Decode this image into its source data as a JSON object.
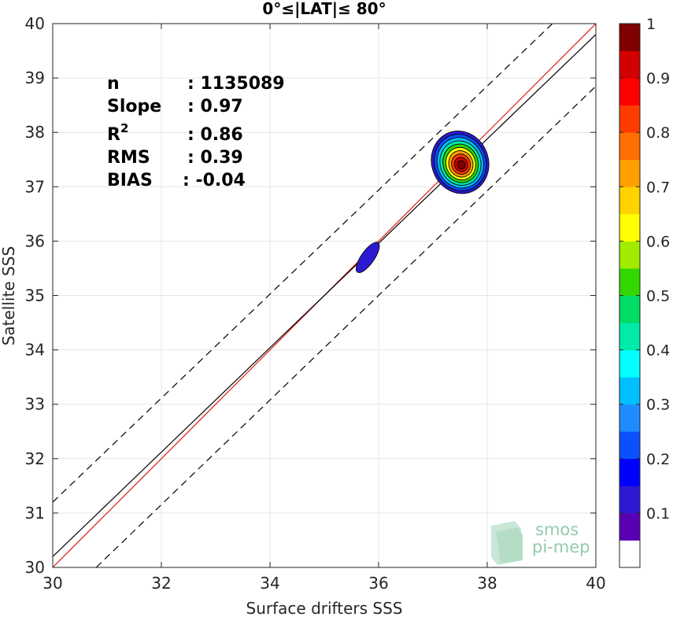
{
  "chart_data": {
    "type": "contour",
    "title": "0°≤|LAT|≤ 80°",
    "xlabel": "Surface drifters SSS",
    "ylabel": "Satellite SSS",
    "xlim": [
      30,
      40
    ],
    "ylim": [
      30,
      40
    ],
    "xticks": [
      "30",
      "32",
      "34",
      "36",
      "38",
      "40"
    ],
    "yticks": [
      "30",
      "31",
      "32",
      "33",
      "34",
      "35",
      "36",
      "37",
      "38",
      "39",
      "40"
    ],
    "grid": true,
    "stats": [
      {
        "label": "n",
        "value": ": 1135089"
      },
      {
        "label": "Slope",
        "value": ": 0.97"
      },
      {
        "label": "R",
        "sup": "2",
        "value": ": 0.86"
      },
      {
        "label": "RMS",
        "value": ": 0.39"
      },
      {
        "label": "BIAS",
        "value": ": -0.04"
      }
    ],
    "lines": [
      {
        "kind": "identity",
        "color": "#e0191e",
        "points": [
          [
            30,
            30
          ],
          [
            40,
            40
          ]
        ]
      },
      {
        "kind": "regression",
        "color": "#000000",
        "points": [
          [
            30,
            30.2
          ],
          [
            40,
            39.8
          ]
        ]
      },
      {
        "kind": "upper_bound",
        "color": "#000000",
        "dash": true,
        "points": [
          [
            30,
            31.2
          ],
          [
            39.2,
            40
          ]
        ]
      },
      {
        "kind": "lower_bound",
        "color": "#000000",
        "dash": true,
        "points": [
          [
            30.8,
            30
          ],
          [
            40,
            38.85
          ]
        ]
      }
    ],
    "clusters": [
      {
        "center": [
          37.5,
          37.45
        ],
        "outer_density": 0.1,
        "peak_density": 1.0
      },
      {
        "center": [
          35.8,
          35.7
        ],
        "outer_density": 0.1,
        "peak_density": 0.1
      }
    ],
    "colorbar": {
      "range": [
        0,
        1
      ],
      "ticks": [
        "0.1",
        "0.2",
        "0.3",
        "0.4",
        "0.5",
        "0.6",
        "0.7",
        "0.8",
        "0.9",
        "1"
      ],
      "colors": [
        "#ffffff",
        "#5a00b4",
        "#2d19d2",
        "#0000ff",
        "#0a50ff",
        "#1e8cff",
        "#00c0ff",
        "#00ffff",
        "#00ebaa",
        "#00dc64",
        "#32d700",
        "#a0eb00",
        "#ffff00",
        "#ffd200",
        "#ffa000",
        "#ff6e00",
        "#ff3c00",
        "#ff0000",
        "#d20000",
        "#7f0000"
      ]
    }
  },
  "logo": {
    "line1": "smos",
    "line2": "pi-mep"
  }
}
